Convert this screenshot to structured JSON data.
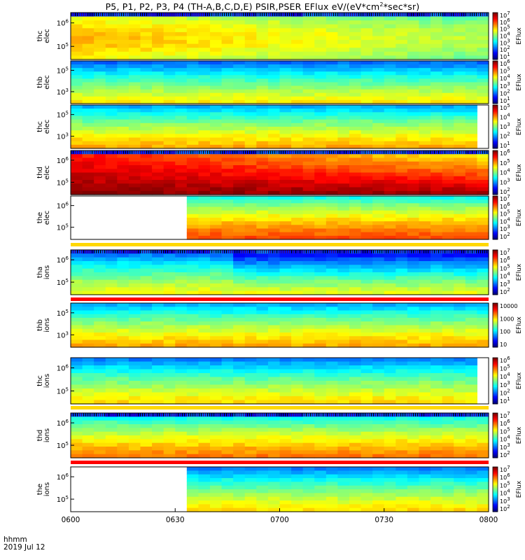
{
  "title_parts": [
    "P5, P1, P2, P3, P4 (TH-A,B,C,D,E) PSIR,PSER EFlux eV/(eV*cm",
    "2",
    "*sec*sr)"
  ],
  "colorbar_label": "EFlux",
  "x_axis": {
    "ticks": [
      "0600",
      "0630",
      "0700",
      "0730",
      "0800"
    ],
    "range_minutes": [
      0,
      120
    ],
    "footer_label": "hhmm",
    "footer_date": "2019 Jul 12"
  },
  "chart_data": [
    {
      "type": "heatmap",
      "ylabel": [
        "thc",
        "elec"
      ],
      "y_ticks": [
        "10^6",
        "10^5"
      ],
      "cbar_ticks": [
        "10^7",
        "10^6",
        "10^5",
        "10^4",
        "10^3",
        "10^2",
        "10^1"
      ],
      "log_scale": true,
      "stripe": null,
      "blank_until_min": null,
      "blank_right": false,
      "grainy_top": true,
      "base_level": 0.48
    },
    {
      "type": "heatmap",
      "ylabel": [
        "thb",
        "elec"
      ],
      "y_ticks": [
        "10^5",
        "10^3"
      ],
      "cbar_ticks": [
        "10^6",
        "10^5",
        "10^4",
        "10^3",
        "10^2",
        "10^1"
      ],
      "log_scale": true,
      "stripe": null,
      "blank_until_min": null,
      "blank_right": false,
      "grainy_top": false,
      "base_level": 0.38
    },
    {
      "type": "heatmap",
      "ylabel": [
        "thc",
        "elec"
      ],
      "y_ticks": [
        "10^5",
        "10^3"
      ],
      "cbar_ticks": [
        "10^5",
        "10^4",
        "10^3",
        "10^2",
        "10^1"
      ],
      "log_scale": true,
      "stripe": null,
      "blank_until_min": null,
      "blank_right": true,
      "grainy_top": false,
      "base_level": 0.45
    },
    {
      "type": "heatmap",
      "ylabel": [
        "thd",
        "elec"
      ],
      "y_ticks": [
        "10^6",
        "10^5"
      ],
      "cbar_ticks": [
        "10^6",
        "10^5",
        "10^4",
        "10^3",
        "10^2"
      ],
      "log_scale": true,
      "stripe": null,
      "blank_until_min": null,
      "blank_right": false,
      "grainy_top": true,
      "base_level": 0.82
    },
    {
      "type": "heatmap",
      "ylabel": [
        "the",
        "elec"
      ],
      "y_ticks": [
        "10^6",
        "10^5"
      ],
      "cbar_ticks": [
        "10^7",
        "10^6",
        "10^5",
        "10^4",
        "10^3",
        "10^2"
      ],
      "log_scale": true,
      "stripe": "#ffd800",
      "blank_until_min": 35,
      "blank_right": false,
      "grainy_top": false,
      "base_level": 0.55
    },
    {
      "type": "heatmap",
      "ylabel": [
        "tha",
        "ions"
      ],
      "y_ticks": [
        "10^6",
        "10^5"
      ],
      "cbar_ticks": [
        "10^7",
        "10^6",
        "10^5",
        "10^4",
        "10^3",
        "10^2"
      ],
      "log_scale": true,
      "stripe": "#ff0000",
      "blank_until_min": null,
      "blank_right": false,
      "grainy_top": true,
      "base_level": 0.36
    },
    {
      "type": "heatmap",
      "ylabel": [
        "thb",
        "ions"
      ],
      "y_ticks": [
        "10^5",
        "10^3"
      ],
      "cbar_ticks": [
        "10000",
        "1000",
        "100",
        "10"
      ],
      "log_scale": true,
      "stripe": "#ff0000",
      "blank_until_min": null,
      "blank_right": false,
      "grainy_top": false,
      "base_level": 0.45
    },
    {
      "type": "heatmap",
      "ylabel": [
        "thc",
        "ions"
      ],
      "y_ticks": [
        "10^6",
        "10^5"
      ],
      "cbar_ticks": [
        "10^6",
        "10^5",
        "10^4",
        "10^3",
        "10^2",
        "10^1"
      ],
      "log_scale": true,
      "stripe": "#ffd800",
      "blank_until_min": null,
      "blank_right": true,
      "grainy_top": false,
      "base_level": 0.4
    },
    {
      "type": "heatmap",
      "ylabel": [
        "thd",
        "ions"
      ],
      "y_ticks": [
        "10^6",
        "10^5"
      ],
      "cbar_ticks": [
        "10^7",
        "10^6",
        "10^5",
        "10^4",
        "10^3",
        "10^2"
      ],
      "log_scale": true,
      "stripe": "#ff0000",
      "blank_until_min": null,
      "blank_right": false,
      "grainy_top": true,
      "base_level": 0.5
    },
    {
      "type": "heatmap",
      "ylabel": [
        "the",
        "ions"
      ],
      "y_ticks": [
        "10^6",
        "10^5"
      ],
      "cbar_ticks": [
        "10^7",
        "10^6",
        "10^5",
        "10^4",
        "10^3",
        "10^2"
      ],
      "log_scale": true,
      "stripe": null,
      "blank_until_min": 35,
      "blank_right": false,
      "grainy_top": false,
      "base_level": 0.4
    }
  ]
}
